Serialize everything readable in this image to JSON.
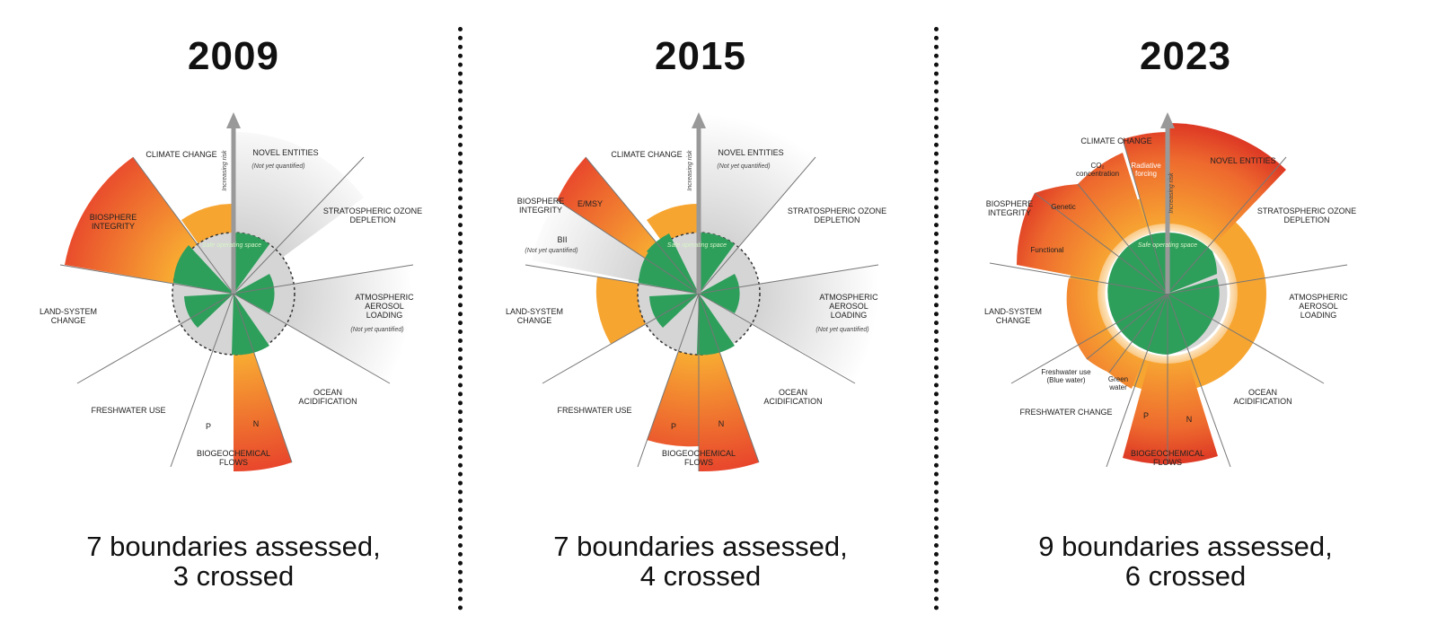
{
  "panels": [
    {
      "year": "2009",
      "summary_line1": "7 boundaries assessed,",
      "summary_line2": "3 crossed",
      "safe_label": "Safe operating space",
      "risk_label": "Increasing risk",
      "labels": {
        "climate": [
          "CLIMATE CHANGE"
        ],
        "novel": [
          "NOVEL ENTITIES"
        ],
        "novel_sub": "(Not yet quantified)",
        "ozone": [
          "STRATOSPHERIC OZONE",
          "DEPLETION"
        ],
        "aerosol": [
          "ATMOSPHERIC",
          "AEROSOL",
          "LOADING"
        ],
        "aerosol_sub": "(Not yet quantified)",
        "ocean": [
          "OCEAN",
          "ACIDIFICATION"
        ],
        "biogeo": [
          "BIOGEOCHEMICAL",
          "FLOWS"
        ],
        "freshwater": [
          "FRESHWATER USE"
        ],
        "land": [
          "LAND-SYSTEM",
          "CHANGE"
        ],
        "biosphere": [
          "BIOSPHERE",
          "INTEGRITY"
        ]
      },
      "wedge_labels": {
        "p": "P",
        "n": "N"
      }
    },
    {
      "year": "2015",
      "summary_line1": "7 boundaries assessed,",
      "summary_line2": "4 crossed",
      "safe_label": "Safe operating space",
      "risk_label": "Increasing risk",
      "labels": {
        "climate": [
          "CLIMATE CHANGE"
        ],
        "novel": [
          "NOVEL ENTITIES"
        ],
        "novel_sub": "(Not yet quantified)",
        "ozone": [
          "STRATOSPHERIC OZONE",
          "DEPLETION"
        ],
        "aerosol": [
          "ATMOSPHERIC",
          "AEROSOL",
          "LOADING"
        ],
        "aerosol_sub": "(Not yet quantified)",
        "ocean": [
          "OCEAN",
          "ACIDIFICATION"
        ],
        "biogeo": [
          "BIOGEOCHEMICAL",
          "FLOWS"
        ],
        "freshwater": [
          "FRESHWATER USE"
        ],
        "land": [
          "LAND-SYSTEM",
          "CHANGE"
        ],
        "biosphere": [
          "BIOSPHERE",
          "INTEGRITY"
        ]
      },
      "wedge_labels": {
        "emsy": "E/MSY",
        "bii": "BII",
        "bii_sub": "(Not yet quantified)",
        "p": "P",
        "n": "N"
      }
    },
    {
      "year": "2023",
      "summary_line1": "9 boundaries assessed,",
      "summary_line2": "6 crossed",
      "safe_label": "Safe operating space",
      "risk_label": "Increasing risk",
      "labels": {
        "climate": [
          "CLIMATE CHANGE"
        ],
        "novel": [
          "NOVEL ENTITIES"
        ],
        "ozone": [
          "STRATOSPHERIC OZONE",
          "DEPLETION"
        ],
        "aerosol": [
          "ATMOSPHERIC",
          "AEROSOL",
          "LOADING"
        ],
        "ocean": [
          "OCEAN",
          "ACIDIFICATION"
        ],
        "biogeo": [
          "BIOGEOCHEMICAL",
          "FLOWS"
        ],
        "freshwater": [
          "FRESHWATER CHANGE"
        ],
        "land": [
          "LAND-SYSTEM",
          "CHANGE"
        ],
        "biosphere": [
          "BIOSPHERE",
          "INTEGRITY"
        ]
      },
      "wedge_labels": {
        "co2": [
          "CO₂",
          "concentration"
        ],
        "rad": [
          "Radiative",
          "forcing"
        ],
        "genetic": "Genetic",
        "functional": "Functional",
        "blue": [
          "Freshwater use",
          "(Blue water)"
        ],
        "green": [
          "Green",
          "water"
        ],
        "p": "P",
        "n": "N"
      }
    }
  ],
  "colors": {
    "safe_green": "#2e9e5b",
    "zone_orange": "#f7a531",
    "high_risk_red": "#e5452c",
    "unquantified_grey": "#d9d9d9"
  }
}
